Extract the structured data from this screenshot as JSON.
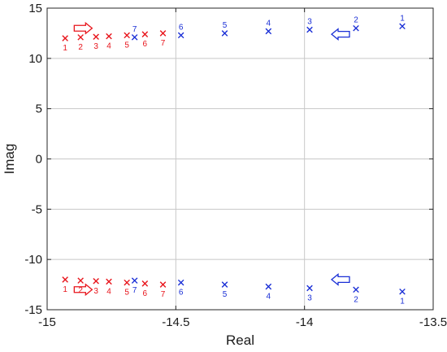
{
  "chart_data": {
    "type": "scatter",
    "title": "",
    "xlabel": "Real",
    "ylabel": "Imag",
    "xlim": [
      -15,
      -13.5
    ],
    "ylim": [
      -15,
      15
    ],
    "x_ticks": [
      -15,
      -14.5,
      -14,
      -13.5
    ],
    "x_tick_labels": [
      "-15",
      "-14.5",
      "-14",
      "-13.5"
    ],
    "y_ticks": [
      -15,
      -10,
      -5,
      0,
      5,
      10,
      15
    ],
    "y_tick_labels": [
      "-15",
      "-10",
      "-5",
      "0",
      "5",
      "10",
      "15"
    ],
    "grid": true,
    "marker": "x",
    "series": [
      {
        "color": "#e8141b",
        "points": [
          {
            "x": -14.93,
            "y": 12.0,
            "label": "1"
          },
          {
            "x": -14.87,
            "y": 12.1,
            "label": "2"
          },
          {
            "x": -14.81,
            "y": 12.15,
            "label": "3"
          },
          {
            "x": -14.76,
            "y": 12.2,
            "label": "4"
          },
          {
            "x": -14.69,
            "y": 12.3,
            "label": "5"
          },
          {
            "x": -14.62,
            "y": 12.4,
            "label": "6"
          },
          {
            "x": -14.55,
            "y": 12.5,
            "label": "7"
          },
          {
            "x": -14.93,
            "y": -12.0,
            "label": "1"
          },
          {
            "x": -14.87,
            "y": -12.1,
            "label": "2"
          },
          {
            "x": -14.81,
            "y": -12.15,
            "label": "3"
          },
          {
            "x": -14.76,
            "y": -12.2,
            "label": "4"
          },
          {
            "x": -14.69,
            "y": -12.3,
            "label": "5"
          },
          {
            "x": -14.62,
            "y": -12.4,
            "label": "6"
          },
          {
            "x": -14.55,
            "y": -12.5,
            "label": "7"
          }
        ]
      },
      {
        "color": "#1a2fd6",
        "points": [
          {
            "x": -13.62,
            "y": 13.2,
            "label": "1"
          },
          {
            "x": -13.8,
            "y": 13.0,
            "label": "2"
          },
          {
            "x": -13.98,
            "y": 12.85,
            "label": "3"
          },
          {
            "x": -14.14,
            "y": 12.7,
            "label": "4"
          },
          {
            "x": -14.31,
            "y": 12.5,
            "label": "5"
          },
          {
            "x": -14.48,
            "y": 12.3,
            "label": "6"
          },
          {
            "x": -14.66,
            "y": 12.1,
            "label": "7"
          },
          {
            "x": -13.62,
            "y": -13.2,
            "label": "1"
          },
          {
            "x": -13.8,
            "y": -13.0,
            "label": "2"
          },
          {
            "x": -13.98,
            "y": -12.85,
            "label": "3"
          },
          {
            "x": -14.14,
            "y": -12.7,
            "label": "4"
          },
          {
            "x": -14.31,
            "y": -12.5,
            "label": "5"
          },
          {
            "x": -14.48,
            "y": -12.3,
            "label": "6"
          },
          {
            "x": -14.66,
            "y": -12.1,
            "label": "7"
          }
        ]
      }
    ],
    "annotations": [
      {
        "type": "arrow",
        "direction": "right",
        "color": "#e8141b",
        "x": -14.86,
        "y": 13.0
      },
      {
        "type": "arrow",
        "direction": "right",
        "color": "#e8141b",
        "x": -14.86,
        "y": -13.0
      },
      {
        "type": "arrow",
        "direction": "left",
        "color": "#1a2fd6",
        "x": -13.86,
        "y": 12.4
      },
      {
        "type": "arrow",
        "direction": "left",
        "color": "#1a2fd6",
        "x": -13.86,
        "y": -12.0
      }
    ]
  }
}
